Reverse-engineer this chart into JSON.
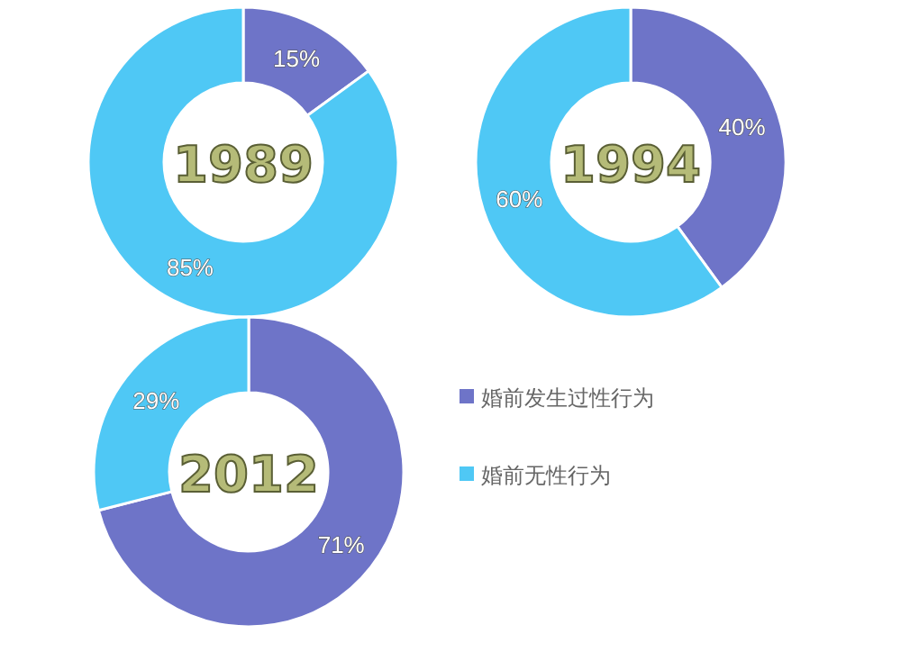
{
  "chart_data": [
    {
      "type": "donut",
      "title": "1989",
      "categories": [
        null,
        null
      ],
      "values": [
        15,
        85
      ],
      "value_labels": [
        "15%",
        "85%"
      ],
      "colors": [
        "#6e74c8",
        "#4fc8f5"
      ],
      "legend": false
    },
    {
      "type": "donut",
      "title": "1994",
      "categories": [
        null,
        null
      ],
      "values": [
        40,
        60
      ],
      "value_labels": [
        "40%",
        "60%"
      ],
      "colors": [
        "#6e74c8",
        "#4fc8f5"
      ],
      "legend": false
    },
    {
      "type": "donut",
      "title": "2012",
      "categories": [
        "婚前发生过性行为",
        "婚前无性行为"
      ],
      "values": [
        71,
        29
      ],
      "value_labels": [
        "71%",
        "29%"
      ],
      "colors": [
        "#6e74c8",
        "#4fc8f5"
      ],
      "legend": "right"
    }
  ]
}
